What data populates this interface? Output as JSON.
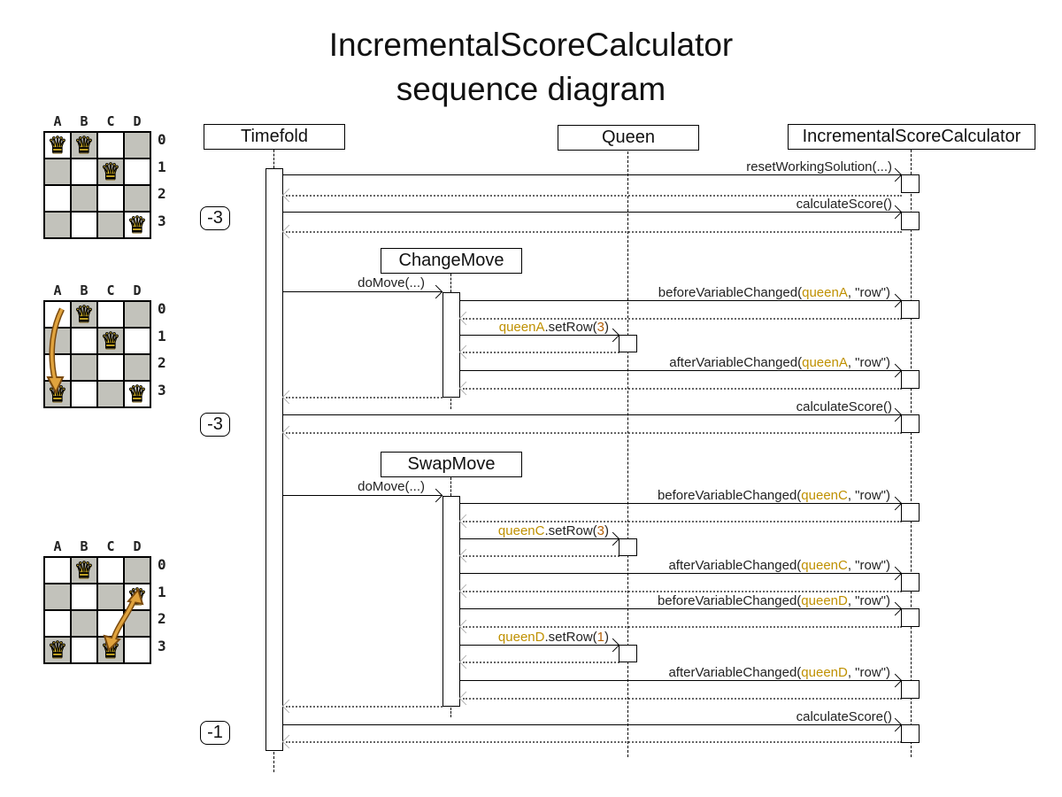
{
  "title": {
    "line1": "IncrementalScoreCalculator",
    "line2": "sequence diagram"
  },
  "actors": {
    "timefold": "Timefold",
    "queen": "Queen",
    "calculator": "IncrementalScoreCalculator"
  },
  "fragments": {
    "change_move": "ChangeMove",
    "swap_move": "SwapMove"
  },
  "badges": {
    "score1": "-3",
    "score2": "-3",
    "score3": "-1"
  },
  "messages": {
    "reset": "resetWorkingSolution(...)",
    "calculate_score": "calculateScore()",
    "do_move": "doMove(...)",
    "before_a": {
      "pre": "beforeVariableChanged(",
      "arg": "queenA",
      "post": ", \"row\")"
    },
    "set_row_a": {
      "obj": "queenA",
      "call": ".setRow(",
      "num": "3",
      "close": ")"
    },
    "after_a": {
      "pre": "afterVariableChanged(",
      "arg": "queenA",
      "post": ", \"row\")"
    },
    "before_c": {
      "pre": "beforeVariableChanged(",
      "arg": "queenC",
      "post": ", \"row\")"
    },
    "set_row_c": {
      "obj": "queenC",
      "call": ".setRow(",
      "num": "3",
      "close": ")"
    },
    "after_c": {
      "pre": "afterVariableChanged(",
      "arg": "queenC",
      "post": ", \"row\")"
    },
    "before_d": {
      "pre": "beforeVariableChanged(",
      "arg": "queenD",
      "post": ", \"row\")"
    },
    "set_row_d": {
      "obj": "queenD",
      "call": ".setRow(",
      "num": "1",
      "close": ")"
    },
    "after_d": {
      "pre": "afterVariableChanged(",
      "arg": "queenD",
      "post": ", \"row\")"
    }
  },
  "boards": {
    "columns": [
      "A",
      "B",
      "C",
      "D"
    ],
    "rows": [
      "0",
      "1",
      "2",
      "3"
    ],
    "queen_icon": "♛",
    "items": [
      {
        "name": "initial-solution",
        "queens": [
          "A0",
          "B0",
          "C1",
          "D3"
        ]
      },
      {
        "name": "after-change-move",
        "queens": [
          "B0",
          "C1",
          "A3",
          "D3"
        ]
      },
      {
        "name": "after-swap-move",
        "queens": [
          "B0",
          "D1",
          "A3",
          "C3"
        ]
      }
    ]
  },
  "colors": {
    "highlight_gold": "#bf9000",
    "highlight_number": "#b45f06",
    "board_gray": "#c2c2bb",
    "queen_gold": "#ffd42e",
    "move_arrow": "#e0a33e"
  }
}
